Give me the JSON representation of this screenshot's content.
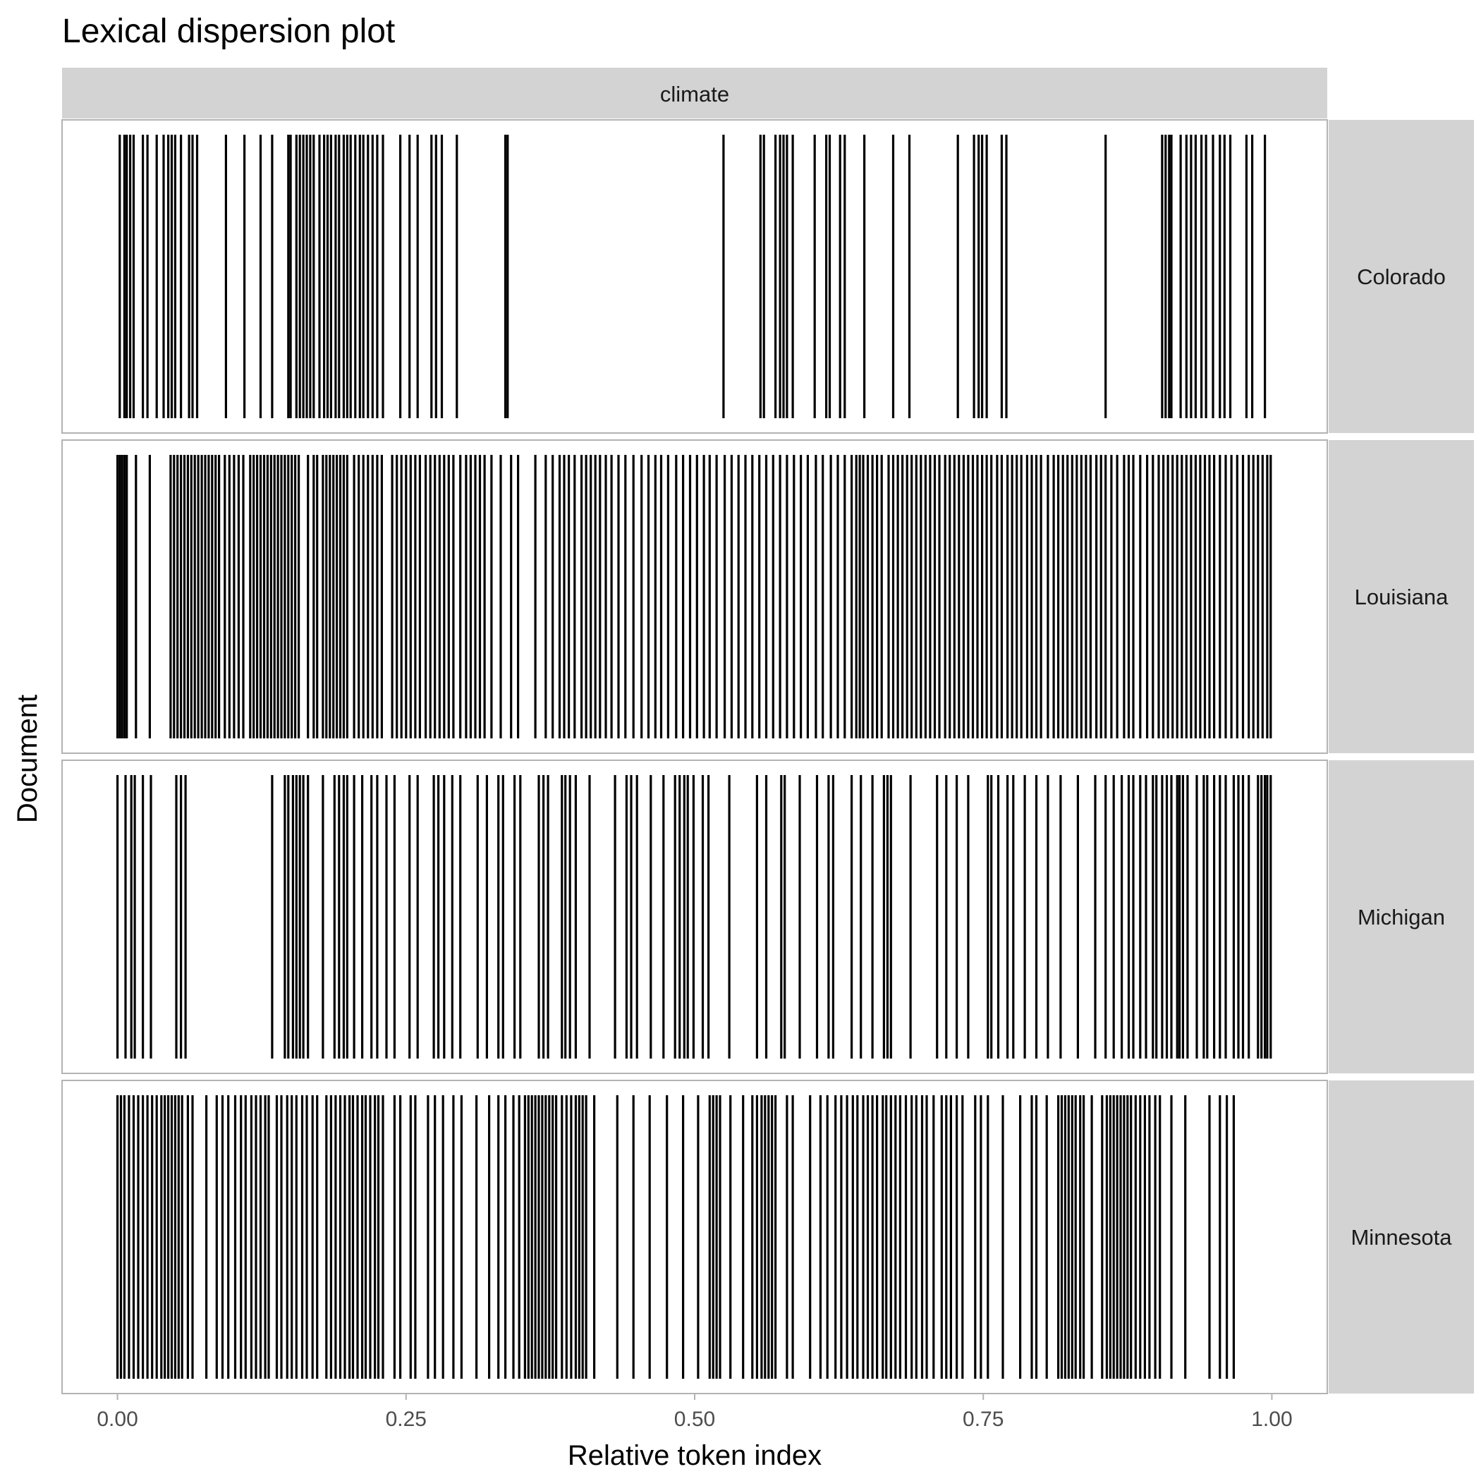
{
  "chart_data": {
    "type": "lexical-dispersion",
    "title": "Lexical dispersion plot",
    "xlabel": "Relative token index",
    "ylabel": "Document",
    "xlim": [
      -0.048,
      1.048
    ],
    "x_ticks": [
      {
        "value": 0.0,
        "label": "0.00"
      },
      {
        "value": 0.25,
        "label": "0.25"
      },
      {
        "value": 0.5,
        "label": "0.50"
      },
      {
        "value": 0.75,
        "label": "0.75"
      },
      {
        "value": 1.0,
        "label": "1.00"
      }
    ],
    "grid": false,
    "facet_column": "climate",
    "documents": [
      {
        "name": "Colorado",
        "x": [
          0.002,
          0.006,
          0.008,
          0.011,
          0.014,
          0.022,
          0.026,
          0.034,
          0.04,
          0.044,
          0.047,
          0.05,
          0.055,
          0.062,
          0.065,
          0.069,
          0.094,
          0.11,
          0.124,
          0.134,
          0.148,
          0.15,
          0.155,
          0.158,
          0.161,
          0.164,
          0.167,
          0.17,
          0.175,
          0.179,
          0.182,
          0.185,
          0.189,
          0.192,
          0.196,
          0.199,
          0.202,
          0.206,
          0.21,
          0.213,
          0.217,
          0.221,
          0.225,
          0.23,
          0.245,
          0.253,
          0.26,
          0.272,
          0.276,
          0.281,
          0.294,
          0.336,
          0.338,
          0.525,
          0.557,
          0.56,
          0.57,
          0.574,
          0.577,
          0.58,
          0.585,
          0.604,
          0.614,
          0.617,
          0.626,
          0.63,
          0.647,
          0.672,
          0.686,
          0.728,
          0.742,
          0.746,
          0.749,
          0.753,
          0.766,
          0.77,
          0.856,
          0.905,
          0.908,
          0.911,
          0.913,
          0.921,
          0.926,
          0.93,
          0.934,
          0.939,
          0.943,
          0.949,
          0.955,
          0.959,
          0.964,
          0.978,
          0.983,
          0.994
        ]
      },
      {
        "name": "Louisiana",
        "x": [
          0.0,
          0.002,
          0.004,
          0.006,
          0.008,
          0.016,
          0.028,
          0.046,
          0.049,
          0.052,
          0.055,
          0.058,
          0.061,
          0.064,
          0.067,
          0.07,
          0.073,
          0.076,
          0.079,
          0.082,
          0.085,
          0.088,
          0.093,
          0.097,
          0.101,
          0.105,
          0.109,
          0.115,
          0.118,
          0.121,
          0.124,
          0.127,
          0.13,
          0.133,
          0.136,
          0.139,
          0.142,
          0.145,
          0.148,
          0.151,
          0.154,
          0.157,
          0.165,
          0.17,
          0.173,
          0.178,
          0.181,
          0.184,
          0.187,
          0.19,
          0.193,
          0.196,
          0.199,
          0.205,
          0.209,
          0.213,
          0.217,
          0.221,
          0.225,
          0.229,
          0.238,
          0.242,
          0.246,
          0.25,
          0.254,
          0.258,
          0.262,
          0.267,
          0.271,
          0.275,
          0.279,
          0.283,
          0.287,
          0.291,
          0.297,
          0.302,
          0.306,
          0.31,
          0.314,
          0.318,
          0.324,
          0.332,
          0.341,
          0.347,
          0.362,
          0.371,
          0.377,
          0.383,
          0.387,
          0.391,
          0.396,
          0.402,
          0.406,
          0.41,
          0.414,
          0.418,
          0.423,
          0.428,
          0.434,
          0.44,
          0.447,
          0.454,
          0.46,
          0.466,
          0.471,
          0.477,
          0.484,
          0.49,
          0.496,
          0.502,
          0.508,
          0.513,
          0.519,
          0.526,
          0.532,
          0.538,
          0.544,
          0.55,
          0.556,
          0.562,
          0.568,
          0.574,
          0.58,
          0.586,
          0.592,
          0.598,
          0.605,
          0.611,
          0.618,
          0.624,
          0.63,
          0.636,
          0.64,
          0.643,
          0.646,
          0.65,
          0.654,
          0.658,
          0.662,
          0.668,
          0.672,
          0.676,
          0.68,
          0.684,
          0.688,
          0.692,
          0.696,
          0.7,
          0.704,
          0.708,
          0.712,
          0.717,
          0.721,
          0.725,
          0.729,
          0.733,
          0.737,
          0.741,
          0.745,
          0.749,
          0.753,
          0.757,
          0.762,
          0.766,
          0.771,
          0.775,
          0.779,
          0.783,
          0.788,
          0.792,
          0.796,
          0.8,
          0.806,
          0.811,
          0.815,
          0.819,
          0.823,
          0.827,
          0.831,
          0.835,
          0.839,
          0.843,
          0.848,
          0.852,
          0.856,
          0.861,
          0.866,
          0.872,
          0.876,
          0.88,
          0.886,
          0.892,
          0.897,
          0.902,
          0.906,
          0.91,
          0.914,
          0.918,
          0.922,
          0.926,
          0.93,
          0.934,
          0.938,
          0.942,
          0.946,
          0.95,
          0.955,
          0.96,
          0.965,
          0.97,
          0.975,
          0.98,
          0.984,
          0.988,
          0.992,
          0.996,
          0.999
        ]
      },
      {
        "name": "Michigan",
        "x": [
          0.0,
          0.007,
          0.012,
          0.015,
          0.022,
          0.029,
          0.051,
          0.055,
          0.059,
          0.134,
          0.145,
          0.148,
          0.152,
          0.155,
          0.158,
          0.161,
          0.165,
          0.178,
          0.188,
          0.192,
          0.196,
          0.199,
          0.205,
          0.212,
          0.22,
          0.225,
          0.233,
          0.24,
          0.253,
          0.26,
          0.274,
          0.278,
          0.283,
          0.29,
          0.297,
          0.312,
          0.32,
          0.33,
          0.334,
          0.344,
          0.349,
          0.365,
          0.369,
          0.373,
          0.385,
          0.388,
          0.392,
          0.397,
          0.409,
          0.431,
          0.441,
          0.445,
          0.45,
          0.462,
          0.473,
          0.483,
          0.487,
          0.491,
          0.494,
          0.499,
          0.507,
          0.512,
          0.53,
          0.554,
          0.562,
          0.575,
          0.578,
          0.591,
          0.606,
          0.616,
          0.62,
          0.636,
          0.644,
          0.654,
          0.664,
          0.667,
          0.67,
          0.687,
          0.71,
          0.718,
          0.727,
          0.737,
          0.754,
          0.757,
          0.763,
          0.771,
          0.776,
          0.786,
          0.796,
          0.806,
          0.817,
          0.832,
          0.847,
          0.856,
          0.863,
          0.87,
          0.876,
          0.88,
          0.886,
          0.891,
          0.897,
          0.9,
          0.905,
          0.909,
          0.913,
          0.918,
          0.92,
          0.923,
          0.927,
          0.935,
          0.941,
          0.944,
          0.95,
          0.955,
          0.96,
          0.967,
          0.971,
          0.975,
          0.98,
          0.988,
          0.991,
          0.994,
          0.996,
          0.999
        ]
      },
      {
        "name": "Minnesota",
        "x": [
          0.0,
          0.003,
          0.006,
          0.01,
          0.014,
          0.018,
          0.022,
          0.026,
          0.03,
          0.034,
          0.038,
          0.041,
          0.044,
          0.047,
          0.05,
          0.053,
          0.056,
          0.061,
          0.065,
          0.077,
          0.086,
          0.091,
          0.096,
          0.102,
          0.107,
          0.111,
          0.116,
          0.12,
          0.124,
          0.128,
          0.131,
          0.138,
          0.142,
          0.147,
          0.151,
          0.155,
          0.16,
          0.164,
          0.169,
          0.173,
          0.181,
          0.185,
          0.189,
          0.193,
          0.197,
          0.201,
          0.204,
          0.208,
          0.212,
          0.215,
          0.219,
          0.223,
          0.226,
          0.23,
          0.24,
          0.245,
          0.254,
          0.258,
          0.269,
          0.275,
          0.282,
          0.291,
          0.298,
          0.311,
          0.322,
          0.33,
          0.336,
          0.343,
          0.348,
          0.353,
          0.356,
          0.359,
          0.362,
          0.365,
          0.368,
          0.371,
          0.374,
          0.377,
          0.38,
          0.385,
          0.389,
          0.393,
          0.397,
          0.4,
          0.403,
          0.406,
          0.413,
          0.433,
          0.447,
          0.461,
          0.476,
          0.49,
          0.503,
          0.513,
          0.516,
          0.519,
          0.522,
          0.531,
          0.542,
          0.55,
          0.554,
          0.558,
          0.561,
          0.564,
          0.567,
          0.57,
          0.58,
          0.585,
          0.6,
          0.609,
          0.615,
          0.622,
          0.627,
          0.632,
          0.637,
          0.641,
          0.646,
          0.65,
          0.654,
          0.658,
          0.663,
          0.666,
          0.67,
          0.674,
          0.678,
          0.683,
          0.688,
          0.692,
          0.697,
          0.701,
          0.707,
          0.714,
          0.718,
          0.722,
          0.727,
          0.732,
          0.743,
          0.748,
          0.754,
          0.767,
          0.782,
          0.792,
          0.796,
          0.805,
          0.815,
          0.818,
          0.821,
          0.824,
          0.827,
          0.83,
          0.834,
          0.837,
          0.844,
          0.853,
          0.857,
          0.86,
          0.863,
          0.866,
          0.869,
          0.872,
          0.875,
          0.878,
          0.882,
          0.886,
          0.89,
          0.894,
          0.899,
          0.903,
          0.913,
          0.925,
          0.946,
          0.955,
          0.961,
          0.967
        ]
      }
    ]
  }
}
